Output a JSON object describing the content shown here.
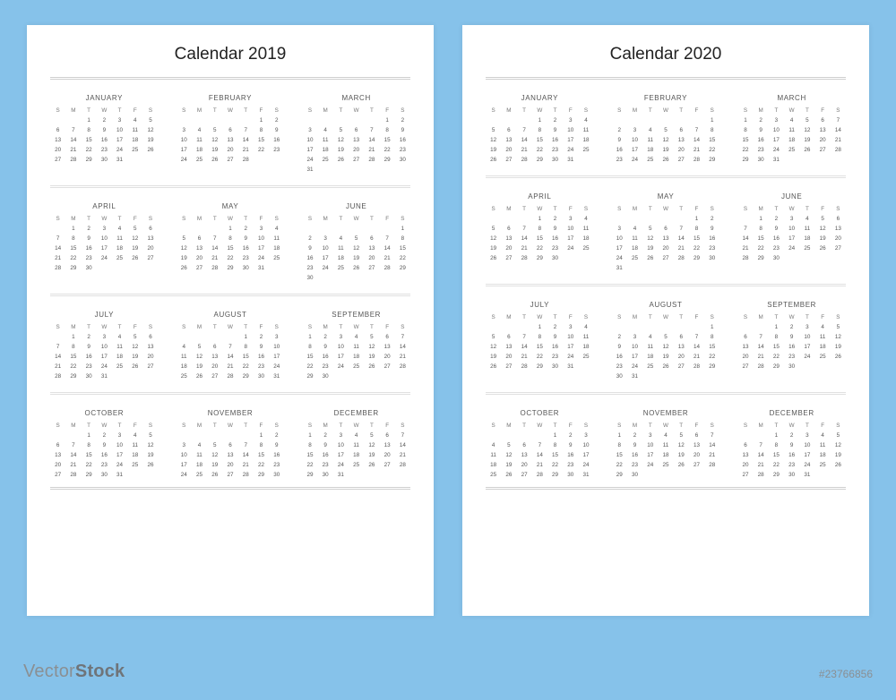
{
  "background_color": "#86c2ea",
  "page_bg": "#ffffff",
  "text_color": "#333333",
  "sub_text_color": "#555555",
  "rule_color": "#d0d0d0",
  "watermark": {
    "part1": "Vector",
    "part2": "Stock",
    "color": "#8a8f93"
  },
  "image_ref": "#23766856",
  "calendars": [
    {
      "title": "Calendar 2019",
      "dow": [
        "S",
        "M",
        "T",
        "W",
        "T",
        "F",
        "S"
      ],
      "months": [
        {
          "name": "JANUARY",
          "start": 2,
          "days": 31
        },
        {
          "name": "FEBRUARY",
          "start": 5,
          "days": 28
        },
        {
          "name": "MARCH",
          "start": 5,
          "days": 31
        },
        {
          "name": "APRIL",
          "start": 1,
          "days": 30
        },
        {
          "name": "MAY",
          "start": 3,
          "days": 31
        },
        {
          "name": "JUNE",
          "start": 6,
          "days": 30
        },
        {
          "name": "JULY",
          "start": 1,
          "days": 31
        },
        {
          "name": "AUGUST",
          "start": 4,
          "days": 31
        },
        {
          "name": "SEPTEMBER",
          "start": 0,
          "days": 30
        },
        {
          "name": "OCTOBER",
          "start": 2,
          "days": 31
        },
        {
          "name": "NOVEMBER",
          "start": 5,
          "days": 30
        },
        {
          "name": "DECEMBER",
          "start": 0,
          "days": 31
        }
      ]
    },
    {
      "title": "Calendar 2020",
      "dow": [
        "S",
        "M",
        "T",
        "W",
        "T",
        "F",
        "S"
      ],
      "months": [
        {
          "name": "JANUARY",
          "start": 3,
          "days": 31
        },
        {
          "name": "FEBRUARY",
          "start": 6,
          "days": 29
        },
        {
          "name": "MARCH",
          "start": 0,
          "days": 31
        },
        {
          "name": "APRIL",
          "start": 3,
          "days": 30
        },
        {
          "name": "MAY",
          "start": 5,
          "days": 31
        },
        {
          "name": "JUNE",
          "start": 1,
          "days": 30
        },
        {
          "name": "JULY",
          "start": 3,
          "days": 31
        },
        {
          "name": "AUGUST",
          "start": 6,
          "days": 31
        },
        {
          "name": "SEPTEMBER",
          "start": 2,
          "days": 30
        },
        {
          "name": "OCTOBER",
          "start": 4,
          "days": 31
        },
        {
          "name": "NOVEMBER",
          "start": 0,
          "days": 30
        },
        {
          "name": "DECEMBER",
          "start": 2,
          "days": 31
        }
      ]
    }
  ]
}
